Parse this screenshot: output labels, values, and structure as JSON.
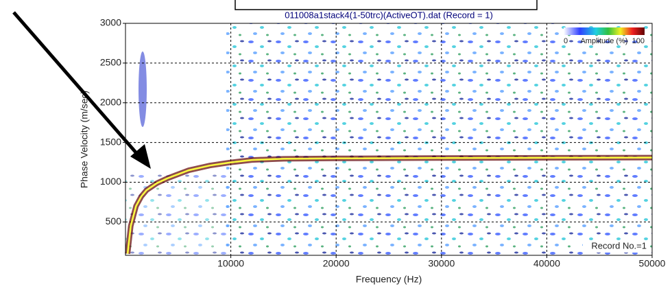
{
  "chart_data": {
    "type": "line",
    "title": "011008a1stack4(1-50trc)(ActiveOT).dat (Record = 1)",
    "x_label": "Frequency (Hz)",
    "y_label": "Phase Velocity (m/sec)",
    "x": [
      200,
      500,
      1000,
      1500,
      2000,
      3000,
      4000,
      5000,
      6000,
      8000,
      10000,
      12000,
      15000,
      20000,
      30000,
      40000,
      50000
    ],
    "values": [
      100,
      450,
      700,
      820,
      900,
      990,
      1050,
      1100,
      1150,
      1210,
      1250,
      1280,
      1295,
      1300,
      1305,
      1308,
      1310
    ],
    "color": "#ffff40",
    "xlim": [
      0,
      50000
    ],
    "ylim": [
      80,
      3000
    ],
    "xticks": [
      10000,
      20000,
      30000,
      40000,
      50000
    ],
    "yticks": [
      500,
      1000,
      1500,
      2000,
      2500,
      3000
    ],
    "grid": true,
    "legend": {
      "min_label": "0",
      "title": "Amplitude (%)",
      "max_label": "100"
    },
    "annotation": "Record No.=1"
  }
}
